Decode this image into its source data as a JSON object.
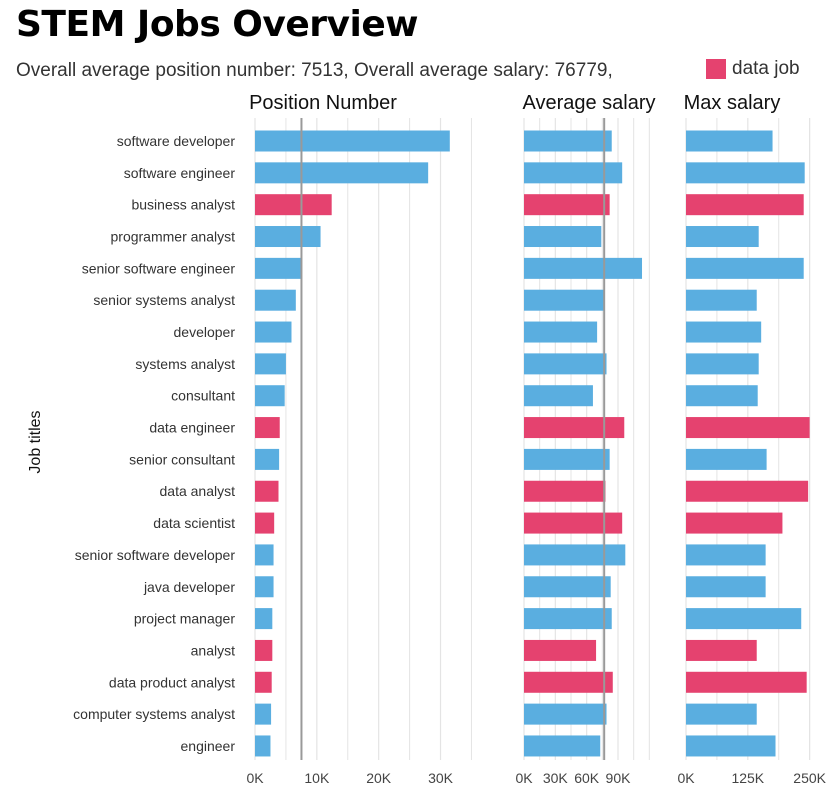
{
  "title": "STEM Jobs Overview",
  "subtitle": "Overall average position number: 7513, Overall average salary: 76779,",
  "legend": {
    "label": "data job"
  },
  "colors": {
    "regular": "#5aaee0",
    "data_job": "#e5426f",
    "grid": "#e4e4e4",
    "refline": "#999999"
  },
  "chart_data": {
    "type": "bar",
    "orientation": "horizontal",
    "ylabel": "Job titles",
    "categories": [
      "software developer",
      "software engineer",
      "business analyst",
      "programmer analyst",
      "senior software engineer",
      "senior systems analyst",
      "developer",
      "systems analyst",
      "consultant",
      "data engineer",
      "senior consultant",
      "data analyst",
      "data scientist",
      "senior software developer",
      "java developer",
      "project manager",
      "analyst",
      "data product analyst",
      "computer systems analyst",
      "engineer"
    ],
    "is_data_job": [
      false,
      false,
      true,
      false,
      false,
      false,
      false,
      false,
      false,
      true,
      false,
      true,
      true,
      false,
      false,
      false,
      true,
      true,
      false,
      false
    ],
    "panels": [
      {
        "title": "Position Number",
        "xlim": [
          0,
          38000
        ],
        "ticks": [
          0,
          10000,
          20000,
          30000
        ],
        "tick_labels": [
          "0K",
          "10K",
          "20K",
          "30K"
        ],
        "minor_ticks": [
          5000,
          15000,
          25000,
          35000
        ],
        "reference_line": 7513,
        "values": [
          31500,
          28000,
          12400,
          10600,
          7400,
          6600,
          5900,
          5000,
          4800,
          4000,
          3900,
          3800,
          3100,
          3000,
          3000,
          2800,
          2800,
          2700,
          2600,
          2500
        ]
      },
      {
        "title": "Average salary",
        "xlim": [
          0,
          135000
        ],
        "ticks": [
          0,
          30000,
          60000,
          90000
        ],
        "tick_labels": [
          "0K",
          "30K",
          "60K",
          "90K"
        ],
        "minor_ticks": [
          15000,
          45000,
          75000,
          105000,
          120000
        ],
        "reference_line": 76779,
        "values": [
          84000,
          94000,
          82000,
          74000,
          113000,
          77000,
          70000,
          79000,
          66000,
          96000,
          82000,
          78000,
          94000,
          97000,
          83000,
          84000,
          69000,
          85000,
          79000,
          73000
        ]
      },
      {
        "title": "Max salary",
        "xlim": [
          0,
          275000
        ],
        "ticks": [
          0,
          125000,
          250000
        ],
        "tick_labels": [
          "0K",
          "125K",
          "250K"
        ],
        "minor_ticks": [
          62500,
          187500
        ],
        "values": [
          175000,
          240000,
          238000,
          147000,
          238000,
          143000,
          152000,
          147000,
          145000,
          250000,
          163000,
          247000,
          195000,
          161000,
          161000,
          233000,
          143000,
          244000,
          143000,
          181000
        ]
      }
    ]
  }
}
